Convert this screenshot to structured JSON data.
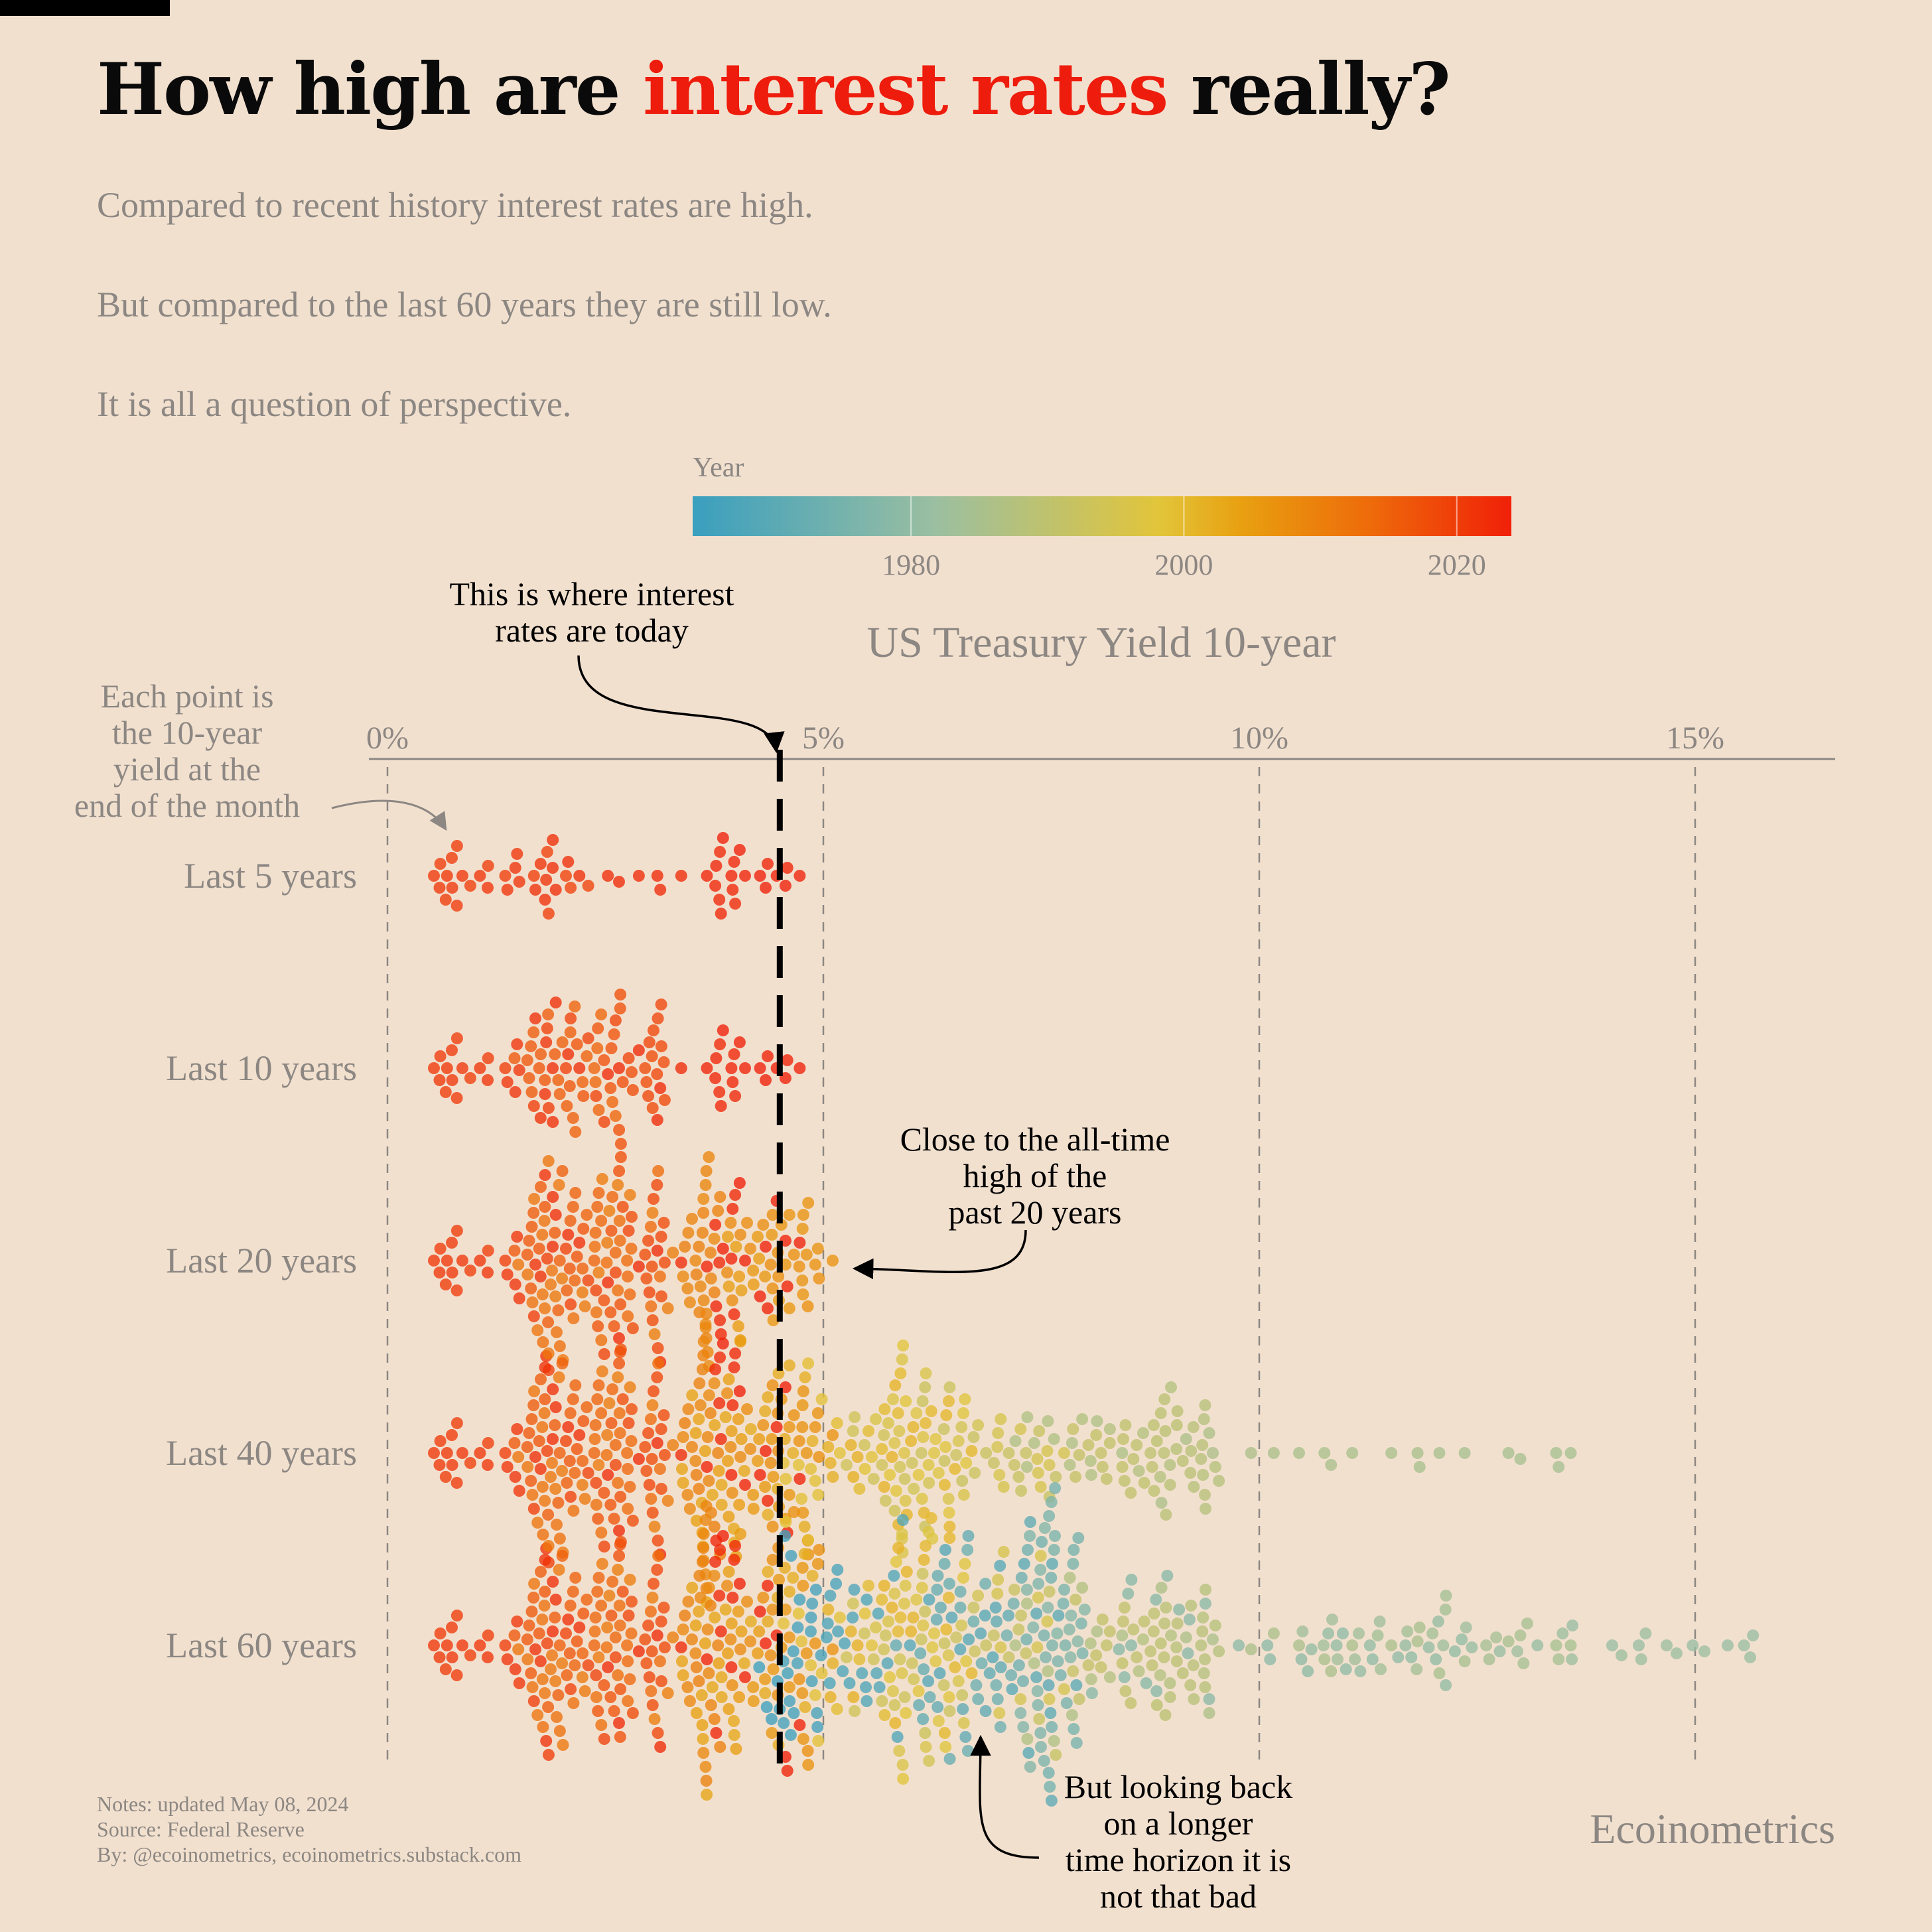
{
  "header": {
    "title_part1": "How high are ",
    "title_accent": "interest rates",
    "title_part2": " really?",
    "subtitle_lines": [
      "Compared to recent history interest rates are high.",
      "But compared to the last 60 years they are still low.",
      "It is all a question of perspective."
    ]
  },
  "colors": {
    "background": "#f2e0cf",
    "accent": "#ee1c0c",
    "muted_text": "#8c8782",
    "gradient_stops": [
      "#3a9fbf",
      "#9cbfa0",
      "#e2c53a",
      "#e8a010",
      "#ee6a0a",
      "#f02008"
    ]
  },
  "chart_data": {
    "type": "beeswarm",
    "title": "US Treasury Yield 10-year",
    "x_axis": {
      "min": 0,
      "max": 16.5,
      "ticks": [
        0,
        5,
        10,
        15
      ],
      "tick_labels": [
        "0%",
        "5%",
        "10%",
        "15%"
      ]
    },
    "color_legend": {
      "title": "Year",
      "range": [
        1964,
        2024
      ],
      "ticks": [
        1980,
        2000,
        2020
      ],
      "tick_labels": [
        "1980",
        "2000",
        "2020"
      ]
    },
    "current_rate": 4.5,
    "series": [
      {
        "label": "Last 5 years",
        "period_years": 5
      },
      {
        "label": "Last 10 years",
        "period_years": 10
      },
      {
        "label": "Last 20 years",
        "period_years": 20
      },
      {
        "label": "Last 40 years",
        "period_years": 40
      },
      {
        "label": "Last 60 years",
        "period_years": 60
      }
    ],
    "annotations": [
      {
        "name": "each-point",
        "text": "Each point is\nthe 10-year\nyield at the\nend of the month"
      },
      {
        "name": "today",
        "text": "This is where interest\nrates are today"
      },
      {
        "name": "high-20",
        "text": "Close to the all-time\nhigh of the\npast 20 years"
      },
      {
        "name": "longer-horizon",
        "text": "But looking back\non a longer\ntime horizon it is\nnot that bad"
      }
    ]
  },
  "footer": {
    "notes": "Notes: updated May 08, 2024",
    "source": "Source: Federal Reserve",
    "by": "By: @ecoinometrics, ecoinometrics.substack.com",
    "brand": "Ecoinometrics"
  }
}
